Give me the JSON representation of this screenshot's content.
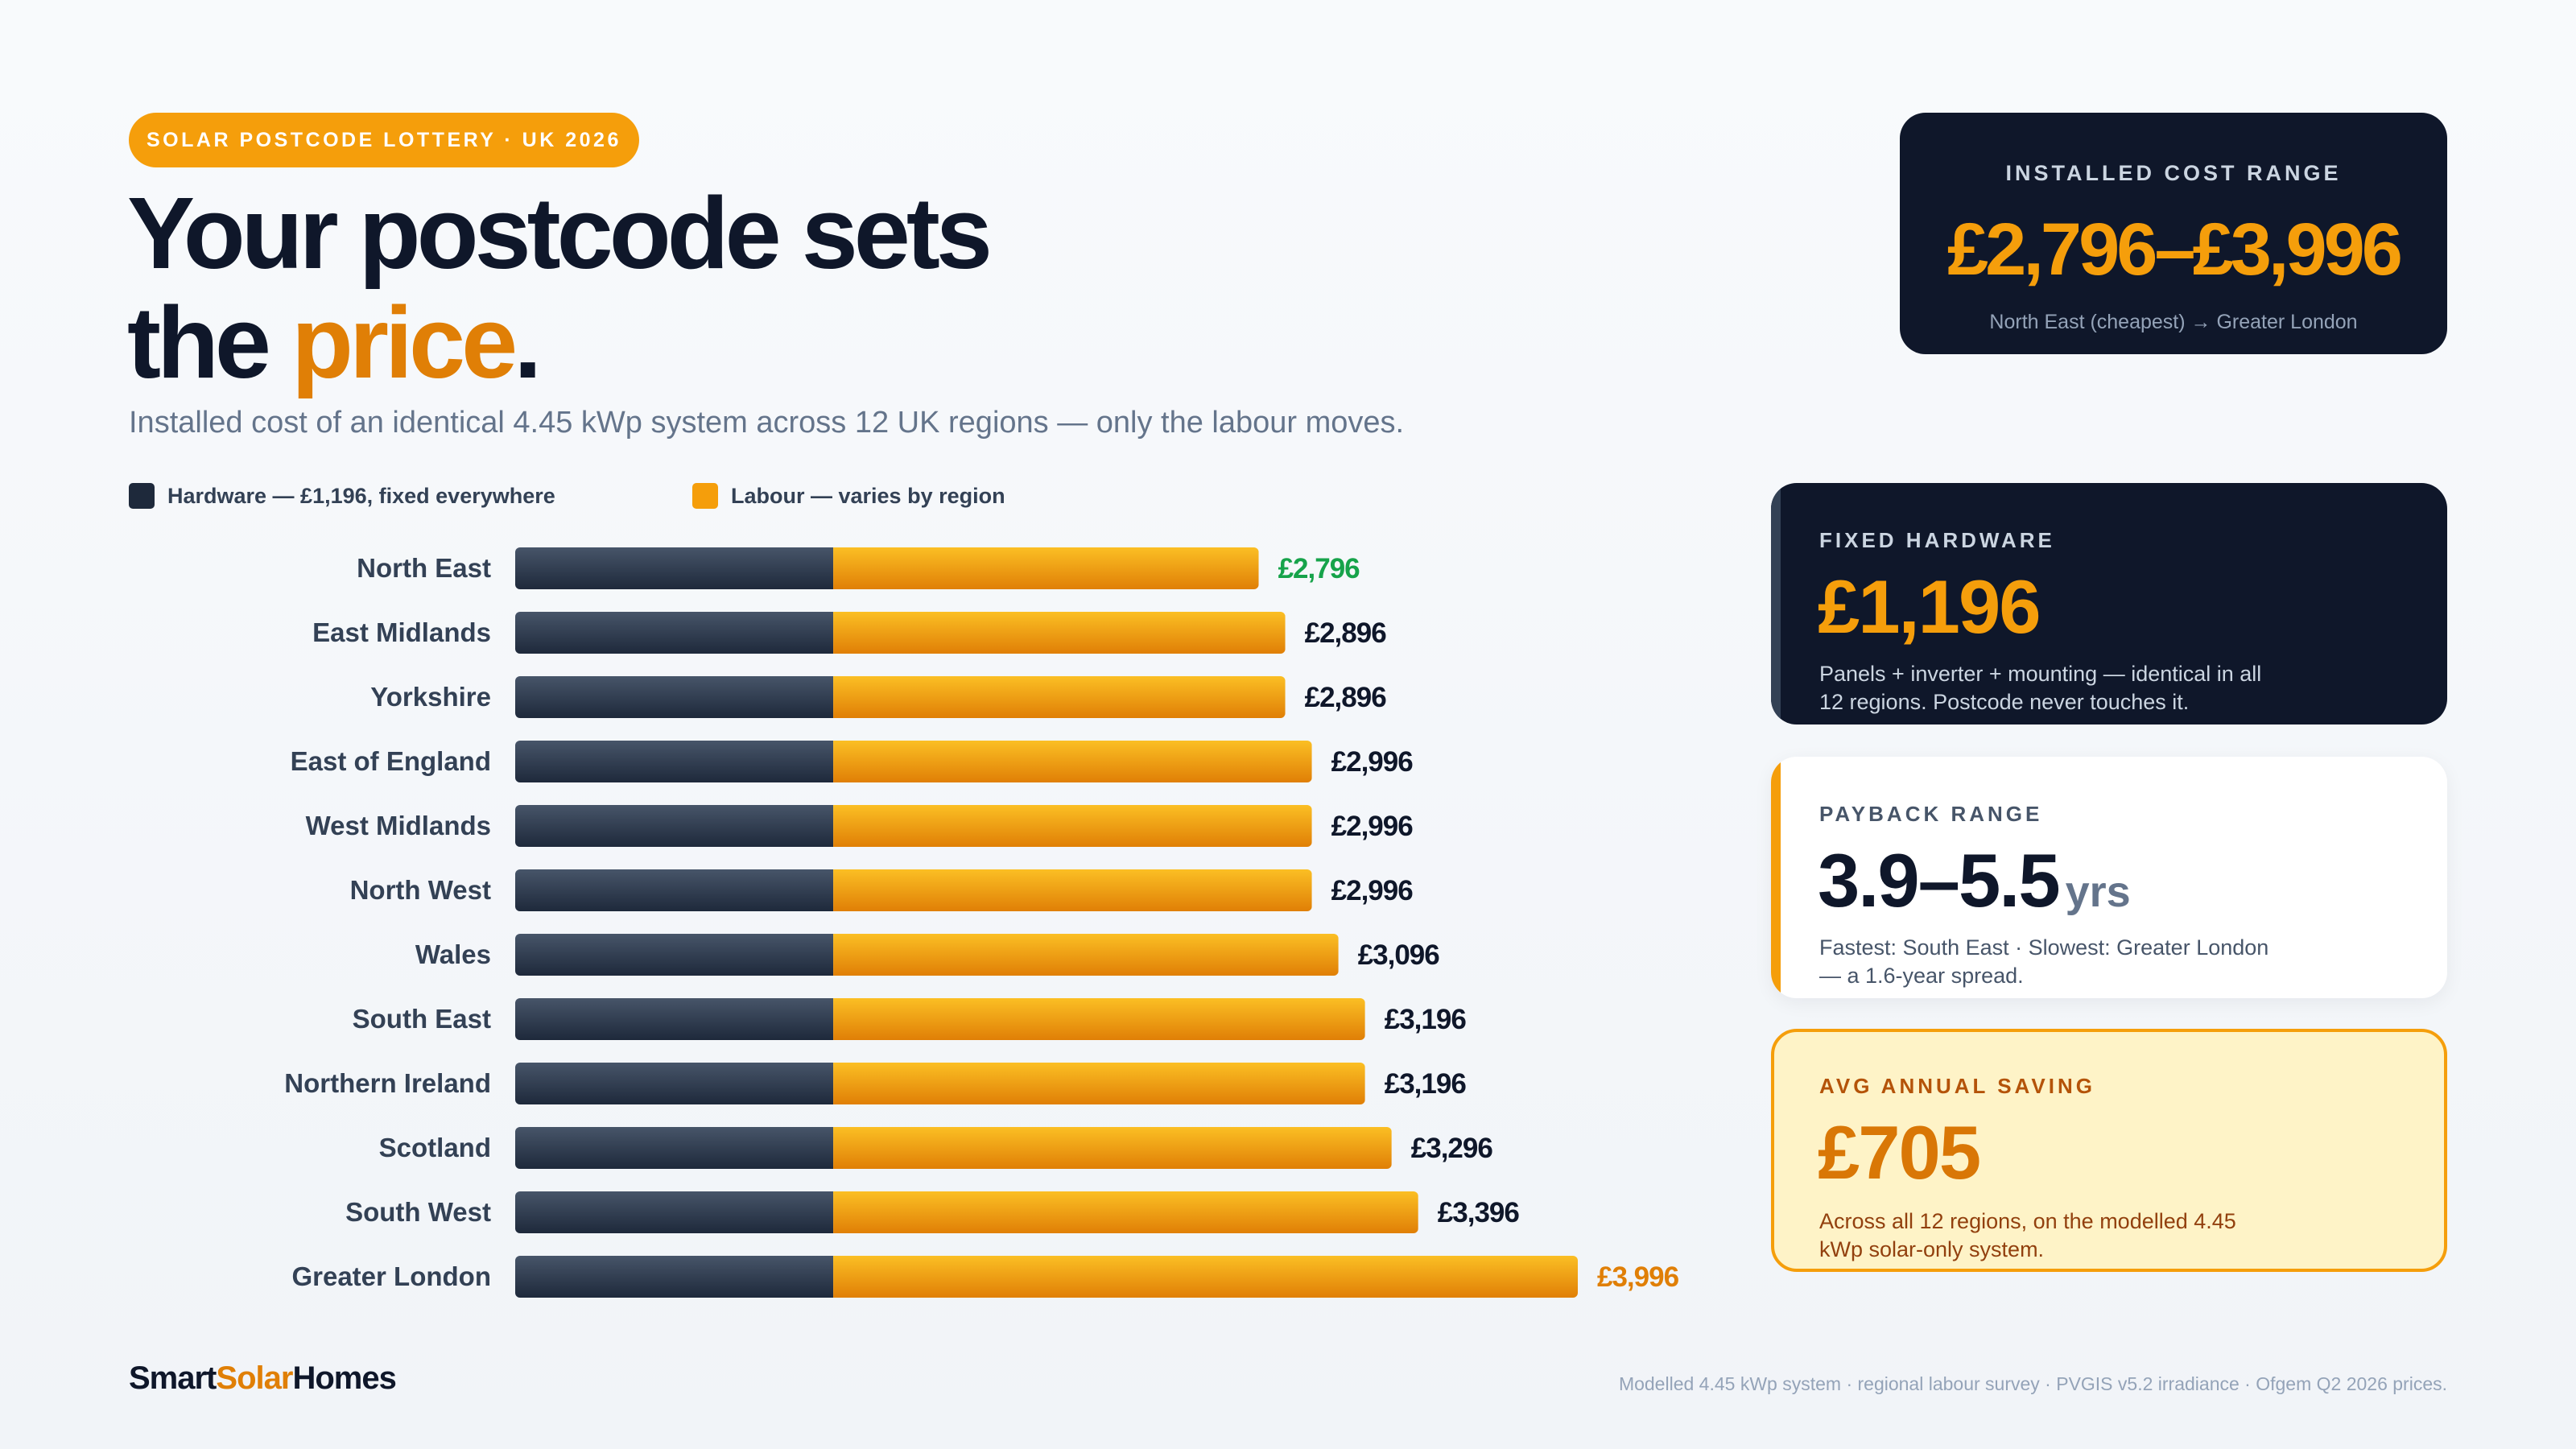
{
  "badge": "SOLAR POSTCODE LOTTERY · UK 2026",
  "headline": {
    "line1": "Your postcode sets",
    "line2_prefix": "the ",
    "line2_accent": "price",
    "line2_suffix": "."
  },
  "subtitle": "Installed cost of an identical 4.45 kWp system across 12 UK regions — only the labour moves.",
  "colors": {
    "hardware": "#1e293b",
    "labour": "#f59e0b",
    "cheapest": "#16a34a",
    "dearest": "#e07f06"
  },
  "chart_data": {
    "type": "bar",
    "orientation": "horizontal",
    "stacked": true,
    "categories": [
      "North East",
      "East Midlands",
      "Yorkshire",
      "East of England",
      "West Midlands",
      "North West",
      "Wales",
      "South East",
      "Northern Ireland",
      "Scotland",
      "South West",
      "Greater London"
    ],
    "series": [
      {
        "name": "Hardware — £1,196, fixed everywhere",
        "values": [
          1196,
          1196,
          1196,
          1196,
          1196,
          1196,
          1196,
          1196,
          1196,
          1196,
          1196,
          1196
        ]
      },
      {
        "name": "Labour — varies by region",
        "values": [
          1600,
          1700,
          1700,
          1800,
          1800,
          1800,
          1900,
          2000,
          2000,
          2100,
          2200,
          2800
        ]
      }
    ],
    "totals": [
      2796,
      2896,
      2896,
      2996,
      2996,
      2996,
      3096,
      3196,
      3196,
      3296,
      3396,
      3996
    ],
    "total_labels": [
      "£2,796",
      "£2,896",
      "£2,896",
      "£2,996",
      "£2,996",
      "£2,996",
      "£3,096",
      "£3,196",
      "£3,196",
      "£3,296",
      "£3,396",
      "£3,996"
    ],
    "xlim": [
      0,
      3996
    ],
    "grid": false,
    "legend_position": "top-left"
  },
  "cards": {
    "range": {
      "label": "INSTALLED COST RANGE",
      "value": "£2,796–£3,996",
      "note": "North East (cheapest) → Greater London"
    },
    "hardware": {
      "label": "FIXED HARDWARE",
      "value": "£1,196",
      "desc": "Panels + inverter + mounting — identical in all 12 regions. Postcode never touches it."
    },
    "payback": {
      "label": "PAYBACK RANGE",
      "value": "3.9–5.5",
      "unit": "yrs",
      "desc": "Fastest: South East · Slowest: Greater London — a 1.6-year spread."
    },
    "saving": {
      "label": "AVG ANNUAL SAVING",
      "value": "£705",
      "desc": "Across all 12 regions, on the modelled 4.45 kWp solar-only system."
    }
  },
  "footer": {
    "brand_part1": "Smart",
    "brand_part2": "Solar",
    "brand_part3": "Homes",
    "source": "Modelled 4.45 kWp system · regional labour survey · PVGIS v5.2 irradiance · Ofgem Q2 2026 prices."
  }
}
